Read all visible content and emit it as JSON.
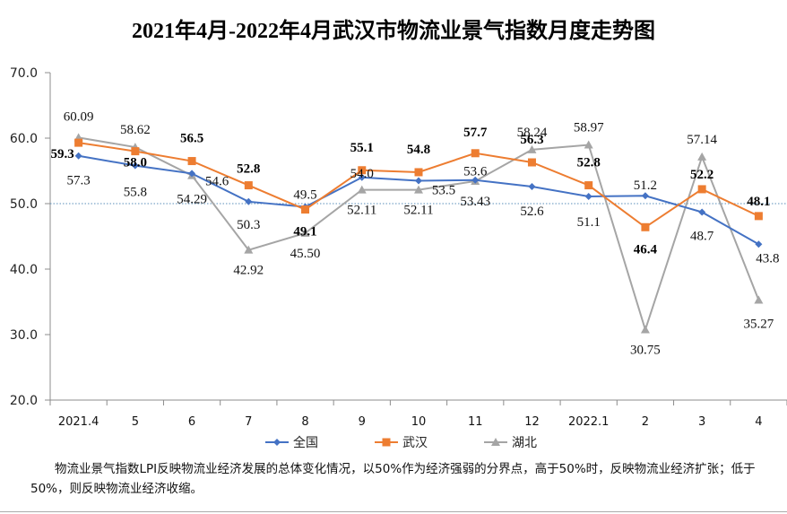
{
  "chart_data": {
    "type": "line",
    "title": "2021年4月-2022年4月武汉市物流业景气指数月度走势图",
    "xlabel": "",
    "ylabel": "",
    "categories": [
      "2021.4",
      "5",
      "6",
      "7",
      "8",
      "9",
      "10",
      "11",
      "12",
      "2022.1",
      "2",
      "3",
      "4"
    ],
    "ylim": [
      20.0,
      70.0
    ],
    "yticks": [
      "20.0",
      "30.0",
      "40.0",
      "50.0",
      "60.0",
      "70.0"
    ],
    "ytick_values": [
      20,
      30,
      40,
      50,
      60,
      70
    ],
    "grid": false,
    "reference_line": {
      "value": 50.0,
      "style": "dotted"
    },
    "legend_position": "bottom",
    "series": [
      {
        "name": "全国",
        "color": "#4472C4",
        "marker": "diamond",
        "label_bold": false,
        "values": [
          57.3,
          55.8,
          54.6,
          50.3,
          49.5,
          54.0,
          53.5,
          53.6,
          52.6,
          51.1,
          51.2,
          48.7,
          43.8
        ],
        "labels": [
          "57.3",
          "55.8",
          "54.6",
          "50.3",
          "49.5",
          "54.0",
          "53.5",
          "53.6",
          "52.6",
          "51.1",
          "51.2",
          "48.7",
          "43.8"
        ]
      },
      {
        "name": "武汉",
        "color": "#ED7D31",
        "marker": "square",
        "label_bold": true,
        "values": [
          59.3,
          58.0,
          56.5,
          52.8,
          49.1,
          55.1,
          54.8,
          57.7,
          56.3,
          52.8,
          46.4,
          52.2,
          48.1
        ],
        "labels": [
          "59.3",
          "58.0",
          "56.5",
          "52.8",
          "49.1",
          "55.1",
          "54.8",
          "57.7",
          "56.3",
          "52.8",
          "46.4",
          "52.2",
          "48.1"
        ]
      },
      {
        "name": "湖北",
        "color": "#A5A5A5",
        "marker": "triangle",
        "label_bold": false,
        "values": [
          60.09,
          58.62,
          54.29,
          42.92,
          45.5,
          52.11,
          52.11,
          53.43,
          58.24,
          58.97,
          30.75,
          57.14,
          35.27
        ],
        "labels": [
          "60.09",
          "58.62",
          "54.29",
          "42.92",
          "45.50",
          "52.11",
          "52.11",
          "53.43",
          "58.24",
          "58.97",
          "30.75",
          "57.14",
          "35.27"
        ]
      }
    ]
  },
  "note": "物流业景气指数LPI反映物流业经济发展的总体变化情况，以50%作为经济强弱的分界点，高于50%时，反映物流业经济扩张；低于50%，则反映物流业经济收缩。"
}
